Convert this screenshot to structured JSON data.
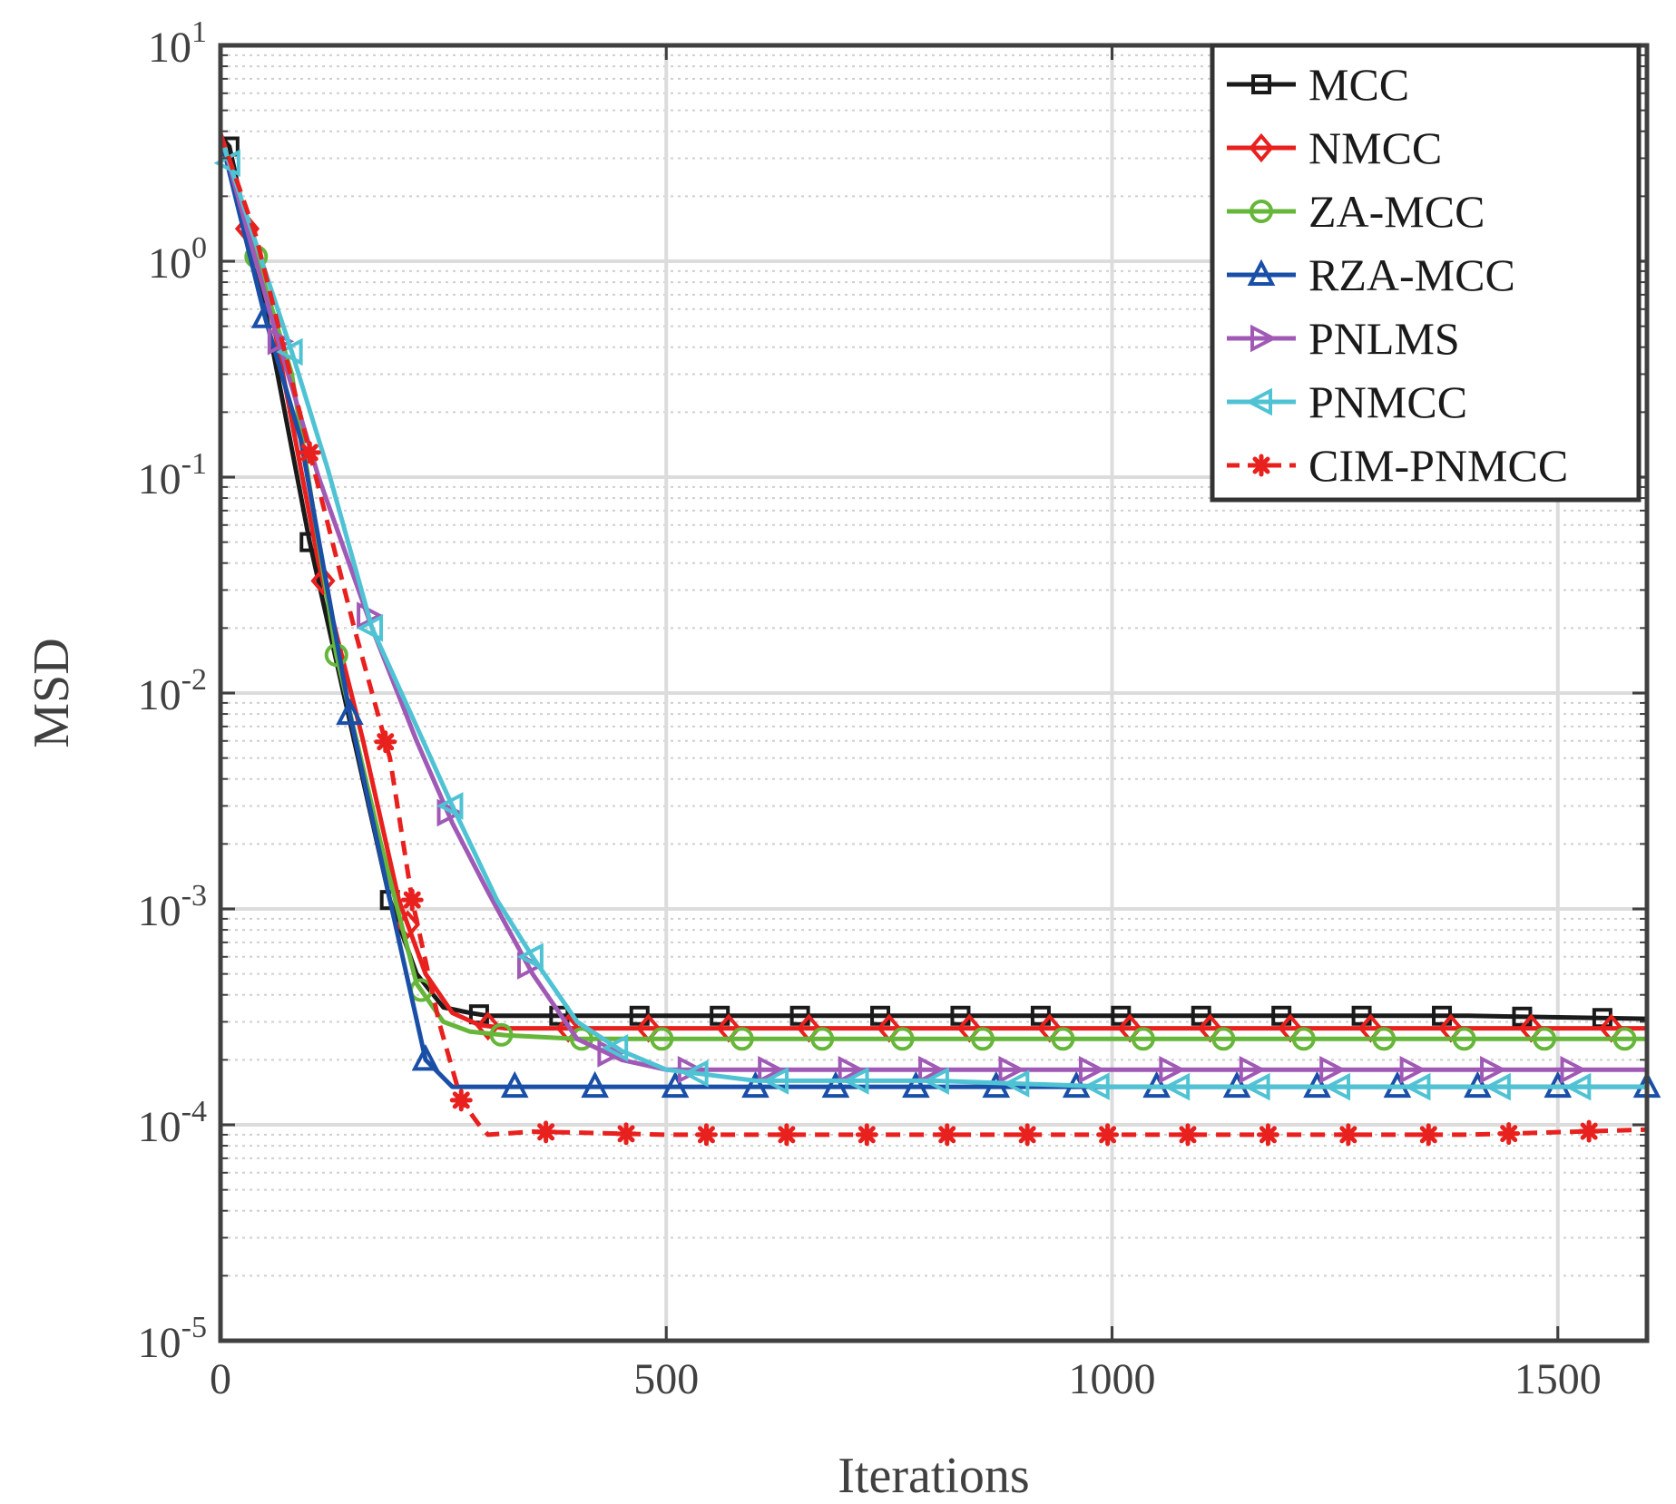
{
  "chart_data": {
    "type": "line",
    "title": "",
    "xlabel": "Iterations",
    "ylabel": "MSD",
    "xlim": [
      0,
      1600
    ],
    "ylim": [
      1e-05,
      10
    ],
    "yscale": "log",
    "grid": true,
    "legend_position": "top-right",
    "x_ticks": [
      0,
      500,
      1000,
      1500
    ],
    "x_tick_labels": [
      "0",
      "500",
      "1000",
      "1500"
    ],
    "y_ticks": [
      1e-05,
      0.0001,
      0.001,
      0.01,
      0.1,
      1,
      10
    ],
    "y_tick_labels": [
      {
        "base": "10",
        "exp": "-5"
      },
      {
        "base": "10",
        "exp": "-4"
      },
      {
        "base": "10",
        "exp": "-3"
      },
      {
        "base": "10",
        "exp": "-2"
      },
      {
        "base": "10",
        "exp": "-1"
      },
      {
        "base": "10",
        "exp": "0"
      },
      {
        "base": "10",
        "exp": "1"
      }
    ],
    "series": [
      {
        "name": "MCC",
        "color": "#1a1a1a",
        "dash": "solid",
        "marker": "square",
        "x": [
          0,
          10,
          50,
          100,
          150,
          190,
          220,
          250,
          280,
          300,
          350,
          400,
          500,
          600,
          800,
          1000,
          1200,
          1400,
          1600
        ],
        "y": [
          3.8,
          3.4,
          0.6,
          0.05,
          0.006,
          0.0011,
          0.0005,
          0.00035,
          0.00033,
          0.00032,
          0.00032,
          0.00032,
          0.00032,
          0.00032,
          0.00032,
          0.00032,
          0.00032,
          0.00032,
          0.00031
        ],
        "marker_x": [
          10,
          100,
          190,
          290,
          380,
          470,
          560,
          650,
          740,
          830,
          920,
          1010,
          1100,
          1190,
          1280,
          1370,
          1460,
          1550
        ]
      },
      {
        "name": "NMCC",
        "color": "#e8201e",
        "dash": "solid",
        "marker": "diamond",
        "x": [
          0,
          20,
          60,
          110,
          160,
          200,
          230,
          260,
          290,
          320,
          400,
          500,
          600,
          800,
          1000,
          1200,
          1400,
          1600
        ],
        "y": [
          3.9,
          2.0,
          0.5,
          0.04,
          0.006,
          0.0011,
          0.0005,
          0.00033,
          0.00029,
          0.00028,
          0.00028,
          0.00028,
          0.00028,
          0.00028,
          0.00028,
          0.00028,
          0.00028,
          0.00028
        ],
        "marker_x": [
          30,
          115,
          210,
          300,
          390,
          480,
          570,
          660,
          750,
          840,
          930,
          1020,
          1110,
          1200,
          1290,
          1380,
          1470,
          1560
        ]
      },
      {
        "name": "ZA-MCC",
        "color": "#66b63a",
        "dash": "solid",
        "marker": "circle",
        "x": [
          0,
          40,
          80,
          130,
          180,
          220,
          250,
          280,
          320,
          400,
          500,
          600,
          800,
          1000,
          1200,
          1400,
          1600
        ],
        "y": [
          3.8,
          1.05,
          0.3,
          0.015,
          0.002,
          0.00045,
          0.0003,
          0.00027,
          0.00026,
          0.00025,
          0.00025,
          0.00025,
          0.00025,
          0.00025,
          0.00025,
          0.00025,
          0.00025
        ],
        "marker_x": [
          40,
          130,
          225,
          315,
          405,
          495,
          585,
          675,
          765,
          855,
          945,
          1035,
          1125,
          1215,
          1305,
          1395,
          1485,
          1575
        ]
      },
      {
        "name": "RZA-MCC",
        "color": "#1a4fa8",
        "dash": "solid",
        "marker": "triangle-up",
        "x": [
          0,
          50,
          90,
          145,
          190,
          230,
          260,
          300,
          400,
          500,
          600,
          800,
          1000,
          1200,
          1400,
          1600
        ],
        "y": [
          3.8,
          0.55,
          0.15,
          0.008,
          0.0011,
          0.0002,
          0.00015,
          0.00015,
          0.00015,
          0.00015,
          0.00015,
          0.00015,
          0.00015,
          0.00015,
          0.00015,
          0.00015
        ],
        "marker_x": [
          50,
          145,
          230,
          330,
          420,
          510,
          600,
          690,
          780,
          870,
          960,
          1050,
          1140,
          1230,
          1320,
          1410,
          1500,
          1600
        ]
      },
      {
        "name": "PNLMS",
        "color": "#a05ab5",
        "dash": "solid",
        "marker": "triangle-right",
        "x": [
          0,
          60,
          110,
          170,
          220,
          260,
          300,
          350,
          400,
          450,
          500,
          600,
          800,
          1000,
          1200,
          1400,
          1600
        ],
        "y": [
          3.9,
          0.5,
          0.1,
          0.02,
          0.006,
          0.0025,
          0.0012,
          0.0005,
          0.00025,
          0.0002,
          0.00018,
          0.00018,
          0.00018,
          0.00018,
          0.00018,
          0.00018,
          0.00018
        ],
        "marker_x": [
          65,
          165,
          255,
          345,
          435,
          525,
          615,
          705,
          795,
          885,
          975,
          1065,
          1155,
          1245,
          1335,
          1425,
          1515
        ]
      },
      {
        "name": "PNMCC",
        "color": "#4fc3d4",
        "dash": "solid",
        "marker": "triangle-left",
        "x": [
          0,
          80,
          120,
          170,
          220,
          260,
          310,
          350,
          400,
          450,
          500,
          550,
          600,
          800,
          1000,
          1200,
          1400,
          1600
        ],
        "y": [
          3.8,
          0.38,
          0.11,
          0.02,
          0.007,
          0.003,
          0.0011,
          0.0006,
          0.0003,
          0.00022,
          0.00018,
          0.00017,
          0.00016,
          0.00016,
          0.00015,
          0.00015,
          0.00015,
          0.00015
        ],
        "marker_x": [
          10,
          80,
          170,
          260,
          350,
          445,
          535,
          625,
          715,
          805,
          895,
          985,
          1075,
          1165,
          1255,
          1345,
          1435,
          1525
        ]
      },
      {
        "name": "CIM-PNMCC",
        "color": "#e8201e",
        "dash": "dashed",
        "marker": "asterisk",
        "x": [
          0,
          40,
          100,
          150,
          190,
          215,
          245,
          270,
          290,
          300,
          350,
          400,
          500,
          600,
          800,
          1000,
          1200,
          1400,
          1600
        ],
        "y": [
          3.9,
          1.3,
          0.13,
          0.02,
          0.005,
          0.0011,
          0.0003,
          0.00013,
          0.0001,
          9e-05,
          9.3e-05,
          9.2e-05,
          9e-05,
          9e-05,
          9e-05,
          9e-05,
          9e-05,
          9e-05,
          9.5e-05
        ],
        "marker_x": [
          100,
          185,
          215,
          270,
          365,
          455,
          545,
          635,
          725,
          815,
          905,
          995,
          1085,
          1175,
          1265,
          1355,
          1445,
          1535
        ]
      }
    ]
  }
}
